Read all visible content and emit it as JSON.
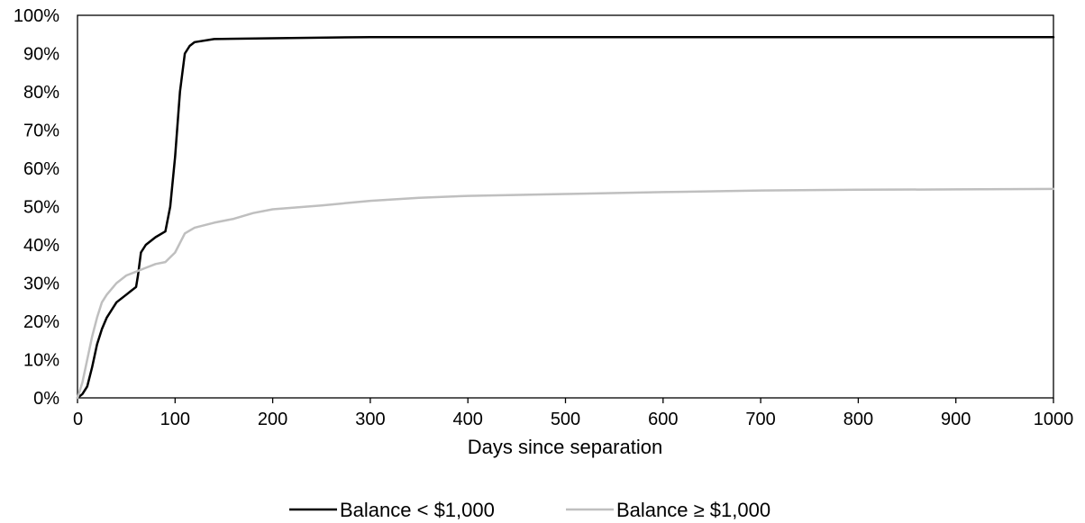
{
  "chart_data": {
    "type": "line",
    "xlabel": "Days since separation",
    "ylabel": "",
    "xlim": [
      0,
      1000
    ],
    "ylim": [
      0,
      100
    ],
    "x_ticks": [
      "0",
      "100",
      "200",
      "300",
      "400",
      "500",
      "600",
      "700",
      "800",
      "900",
      "1000"
    ],
    "y_ticks": [
      "0%",
      "10%",
      "20%",
      "30%",
      "40%",
      "50%",
      "60%",
      "70%",
      "80%",
      "90%",
      "100%"
    ],
    "grid": false,
    "legend_position": "bottom-center",
    "series": [
      {
        "name": "Balance < $1,000",
        "color": "#000000",
        "points": [
          [
            0,
            0
          ],
          [
            5,
            1
          ],
          [
            10,
            3
          ],
          [
            15,
            8
          ],
          [
            20,
            14
          ],
          [
            25,
            18
          ],
          [
            30,
            21
          ],
          [
            40,
            25
          ],
          [
            50,
            27
          ],
          [
            55,
            28
          ],
          [
            60,
            29
          ],
          [
            62,
            32
          ],
          [
            65,
            38
          ],
          [
            70,
            40
          ],
          [
            80,
            42
          ],
          [
            90,
            43.5
          ],
          [
            95,
            50
          ],
          [
            100,
            63
          ],
          [
            105,
            80
          ],
          [
            110,
            90
          ],
          [
            115,
            92
          ],
          [
            120,
            93
          ],
          [
            140,
            93.8
          ],
          [
            200,
            94
          ],
          [
            300,
            94.3
          ],
          [
            1000,
            94.3
          ]
        ]
      },
      {
        "name": "Balance ≥ $1,000",
        "color": "#bfbfbf",
        "points": [
          [
            0,
            0
          ],
          [
            5,
            4
          ],
          [
            10,
            10
          ],
          [
            15,
            16
          ],
          [
            20,
            21
          ],
          [
            25,
            25
          ],
          [
            30,
            27
          ],
          [
            40,
            30
          ],
          [
            50,
            32
          ],
          [
            60,
            33
          ],
          [
            70,
            34
          ],
          [
            80,
            35
          ],
          [
            90,
            35.5
          ],
          [
            100,
            38
          ],
          [
            105,
            40.5
          ],
          [
            110,
            43
          ],
          [
            120,
            44.5
          ],
          [
            140,
            45.8
          ],
          [
            160,
            46.8
          ],
          [
            180,
            48.3
          ],
          [
            200,
            49.3
          ],
          [
            250,
            50.3
          ],
          [
            300,
            51.5
          ],
          [
            350,
            52.3
          ],
          [
            400,
            52.8
          ],
          [
            500,
            53.3
          ],
          [
            600,
            53.8
          ],
          [
            700,
            54.2
          ],
          [
            800,
            54.4
          ],
          [
            900,
            54.5
          ],
          [
            1000,
            54.6
          ]
        ]
      }
    ]
  }
}
